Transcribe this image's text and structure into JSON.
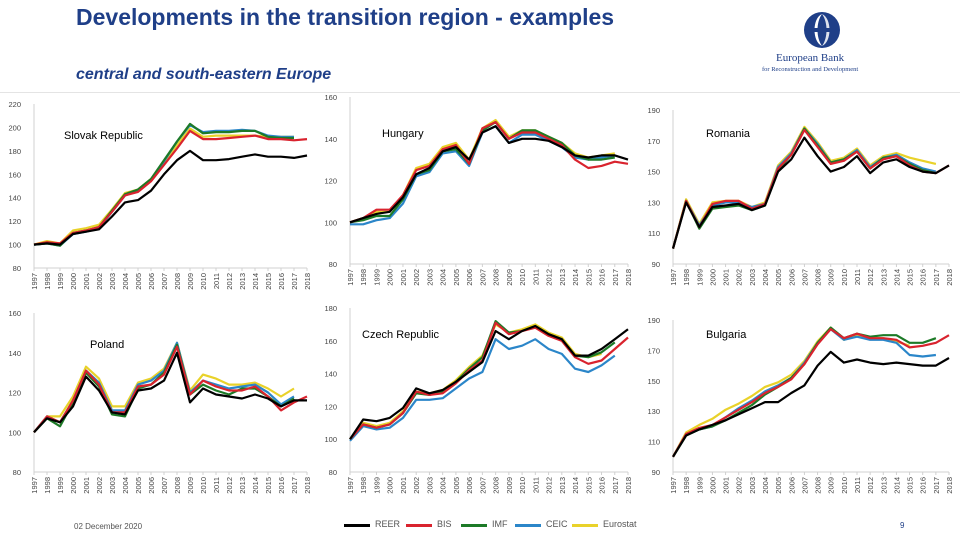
{
  "header": {
    "title": "Developments in the transition region - examples",
    "subtitle": "central and south-eastern Europe"
  },
  "logo": {
    "name": "European Bank",
    "tagline": "for Reconstruction and Development"
  },
  "footer": {
    "date": "02 December 2020",
    "page_number": "9"
  },
  "colors": {
    "REER": "#000000",
    "BIS": "#d9232e",
    "IMF": "#1d7a27",
    "CEIC": "#2b86c9",
    "Eurostat": "#e9d22a",
    "title": "#1f3f88"
  },
  "legend": [
    {
      "name": "REER",
      "color": "#000000"
    },
    {
      "name": "BIS",
      "color": "#d9232e"
    },
    {
      "name": "IMF",
      "color": "#1d7a27"
    },
    {
      "name": "CEIC",
      "color": "#2b86c9"
    },
    {
      "name": "Eurostat",
      "color": "#e9d22a"
    }
  ],
  "chart_data": [
    {
      "type": "line",
      "label": "Slovak Republic",
      "categories": [
        "1997",
        "1998",
        "1999",
        "2000",
        "2001",
        "2002",
        "2003",
        "2004",
        "2005",
        "2006",
        "2007",
        "2008",
        "2009",
        "2010",
        "2011",
        "2012",
        "2013",
        "2014",
        "2015",
        "2016",
        "2017",
        "2018"
      ],
      "ylim": [
        80,
        220
      ],
      "yticks": [
        80,
        100,
        120,
        140,
        160,
        180,
        200,
        220
      ],
      "series": [
        {
          "name": "REER",
          "values": [
            100,
            101,
            100,
            109,
            111,
            113,
            124,
            136,
            138,
            146,
            160,
            172,
            180,
            172,
            172,
            173,
            175,
            177,
            175,
            175,
            174,
            176
          ]
        },
        {
          "name": "BIS",
          "values": [
            100,
            102,
            101,
            110,
            112,
            115,
            128,
            142,
            145,
            154,
            168,
            182,
            197,
            190,
            190,
            191,
            192,
            193,
            190,
            190,
            189,
            190
          ]
        },
        {
          "name": "IMF",
          "values": [
            100,
            101,
            99,
            110,
            112,
            115,
            129,
            143,
            147,
            156,
            172,
            188,
            203,
            195,
            196,
            196,
            197,
            197,
            192,
            191,
            191,
            null
          ]
        },
        {
          "name": "CEIC",
          "values": [
            100,
            101,
            99,
            109,
            111,
            114,
            128,
            142,
            146,
            155,
            171,
            188,
            202,
            196,
            197,
            197,
            198,
            197,
            193,
            192,
            192,
            null
          ]
        },
        {
          "name": "Eurostat",
          "values": [
            100,
            103,
            101,
            112,
            114,
            117,
            130,
            144,
            147,
            156,
            170,
            185,
            199,
            192,
            193,
            193,
            193,
            193,
            192,
            192,
            192,
            null
          ]
        }
      ]
    },
    {
      "type": "line",
      "label": "Hungary",
      "categories": [
        "1997",
        "1998",
        "1999",
        "2000",
        "2001",
        "2002",
        "2003",
        "2004",
        "2005",
        "2006",
        "2007",
        "2008",
        "2009",
        "2010",
        "2011",
        "2012",
        "2013",
        "2014",
        "2015",
        "2016",
        "2017",
        "2018"
      ],
      "ylim": [
        80,
        160
      ],
      "yticks": [
        80,
        100,
        120,
        140,
        160
      ],
      "series": [
        {
          "name": "REER",
          "values": [
            100,
            102,
            104,
            105,
            112,
            123,
            126,
            134,
            136,
            130,
            143,
            146,
            138,
            140,
            140,
            139,
            136,
            132,
            131,
            132,
            132,
            130
          ]
        },
        {
          "name": "BIS",
          "values": [
            100,
            102,
            106,
            106,
            113,
            125,
            127,
            135,
            137,
            128,
            145,
            148,
            140,
            143,
            143,
            140,
            137,
            130,
            126,
            127,
            129,
            128
          ]
        },
        {
          "name": "IMF",
          "values": [
            100,
            101,
            103,
            103,
            111,
            123,
            125,
            134,
            135,
            128,
            144,
            148,
            140,
            144,
            144,
            141,
            138,
            132,
            130,
            130,
            131,
            null
          ]
        },
        {
          "name": "CEIC",
          "values": [
            99,
            99,
            101,
            102,
            109,
            122,
            124,
            133,
            134,
            127,
            143,
            146,
            138,
            142,
            142,
            139,
            136,
            131,
            130,
            131,
            132,
            null
          ]
        },
        {
          "name": "Eurostat",
          "values": [
            100,
            102,
            105,
            105,
            113,
            126,
            128,
            136,
            138,
            130,
            145,
            149,
            141,
            144,
            144,
            141,
            138,
            133,
            131,
            132,
            133,
            null
          ]
        }
      ]
    },
    {
      "type": "line",
      "label": "Romania",
      "categories": [
        "1997",
        "1998",
        "1999",
        "2000",
        "2001",
        "2002",
        "2003",
        "2004",
        "2005",
        "2006",
        "2007",
        "2008",
        "2009",
        "2010",
        "2011",
        "2012",
        "2013",
        "2014",
        "2015",
        "2016",
        "2017",
        "2018"
      ],
      "ylim": [
        90,
        190
      ],
      "yticks": [
        90,
        110,
        130,
        150,
        170,
        190
      ],
      "series": [
        {
          "name": "REER",
          "values": [
            100,
            130,
            114,
            127,
            128,
            129,
            125,
            128,
            150,
            158,
            172,
            160,
            150,
            153,
            160,
            149,
            156,
            158,
            153,
            150,
            149,
            154
          ]
        },
        {
          "name": "BIS",
          "values": [
            100,
            131,
            114,
            129,
            131,
            131,
            126,
            129,
            152,
            161,
            177,
            166,
            155,
            157,
            163,
            152,
            158,
            160,
            154,
            150,
            149,
            154
          ]
        },
        {
          "name": "IMF",
          "values": [
            100,
            131,
            113,
            126,
            127,
            128,
            125,
            128,
            151,
            161,
            178,
            167,
            156,
            158,
            163,
            152,
            159,
            160,
            155,
            151,
            149,
            null
          ]
        },
        {
          "name": "CEIC",
          "values": [
            100,
            131,
            115,
            128,
            130,
            130,
            127,
            129,
            153,
            162,
            178,
            168,
            156,
            158,
            164,
            153,
            159,
            161,
            156,
            152,
            150,
            null
          ]
        },
        {
          "name": "Eurostat",
          "values": [
            100,
            132,
            116,
            130,
            131,
            131,
            127,
            130,
            154,
            163,
            179,
            169,
            157,
            159,
            165,
            154,
            160,
            162,
            159,
            157,
            155,
            null
          ]
        }
      ]
    },
    {
      "type": "line",
      "label": "Poland",
      "categories": [
        "1997",
        "1998",
        "1999",
        "2000",
        "2001",
        "2002",
        "2003",
        "2004",
        "2005",
        "2006",
        "2007",
        "2008",
        "2009",
        "2010",
        "2011",
        "2012",
        "2013",
        "2014",
        "2015",
        "2016",
        "2017",
        "2018"
      ],
      "ylim": [
        80,
        160
      ],
      "yticks": [
        80,
        100,
        120,
        140,
        160
      ],
      "series": [
        {
          "name": "REER",
          "values": [
            100,
            107,
            105,
            113,
            128,
            121,
            110,
            109,
            121,
            122,
            126,
            140,
            115,
            122,
            119,
            118,
            117,
            119,
            117,
            113,
            116,
            116
          ]
        },
        {
          "name": "BIS",
          "values": [
            100,
            108,
            105,
            116,
            131,
            124,
            110,
            110,
            123,
            124,
            129,
            143,
            119,
            126,
            123,
            121,
            121,
            123,
            118,
            111,
            115,
            118
          ]
        },
        {
          "name": "IMF",
          "values": [
            100,
            107,
            103,
            115,
            130,
            123,
            109,
            108,
            122,
            124,
            130,
            144,
            119,
            124,
            121,
            119,
            122,
            122,
            118,
            113,
            117,
            null
          ]
        },
        {
          "name": "CEIC",
          "values": [
            100,
            108,
            105,
            116,
            131,
            125,
            111,
            111,
            124,
            126,
            131,
            145,
            120,
            126,
            124,
            122,
            123,
            124,
            120,
            114,
            118,
            null
          ]
        },
        {
          "name": "Eurostat",
          "values": [
            100,
            108,
            108,
            118,
            133,
            127,
            113,
            113,
            125,
            127,
            132,
            145,
            121,
            129,
            127,
            124,
            124,
            125,
            122,
            118,
            122,
            null
          ]
        }
      ]
    },
    {
      "type": "line",
      "label": "Czech Republic",
      "categories": [
        "1997",
        "1998",
        "1999",
        "2000",
        "2001",
        "2002",
        "2003",
        "2004",
        "2005",
        "2006",
        "2007",
        "2008",
        "2009",
        "2010",
        "2011",
        "2012",
        "2013",
        "2014",
        "2015",
        "2016",
        "2017",
        "2018"
      ],
      "ylim": [
        80,
        180
      ],
      "yticks": [
        80,
        100,
        120,
        140,
        160,
        180
      ],
      "series": [
        {
          "name": "REER",
          "values": [
            100,
            112,
            111,
            113,
            119,
            131,
            128,
            130,
            135,
            141,
            147,
            166,
            161,
            166,
            169,
            164,
            161,
            151,
            151,
            155,
            161,
            167
          ]
        },
        {
          "name": "BIS",
          "values": [
            100,
            109,
            107,
            109,
            116,
            129,
            127,
            128,
            134,
            142,
            148,
            171,
            164,
            166,
            168,
            163,
            160,
            150,
            146,
            148,
            155,
            162
          ]
        },
        {
          "name": "IMF",
          "values": [
            100,
            109,
            107,
            109,
            116,
            128,
            127,
            129,
            135,
            143,
            150,
            172,
            165,
            166,
            169,
            164,
            161,
            151,
            150,
            153,
            159,
            null
          ]
        },
        {
          "name": "CEIC",
          "values": [
            99,
            108,
            106,
            107,
            113,
            124,
            124,
            125,
            131,
            137,
            141,
            161,
            155,
            157,
            161,
            155,
            152,
            143,
            141,
            145,
            151,
            null
          ]
        },
        {
          "name": "Eurostat",
          "values": [
            100,
            110,
            108,
            110,
            117,
            129,
            128,
            130,
            136,
            144,
            151,
            170,
            165,
            167,
            170,
            165,
            162,
            152,
            150,
            152,
            null,
            null
          ]
        }
      ]
    },
    {
      "type": "line",
      "label": "Bulgaria",
      "categories": [
        "1997",
        "1998",
        "1999",
        "2000",
        "2001",
        "2002",
        "2003",
        "2004",
        "2005",
        "2006",
        "2007",
        "2008",
        "2009",
        "2010",
        "2011",
        "2012",
        "2013",
        "2014",
        "2015",
        "2016",
        "2017",
        "2018"
      ],
      "ylim": [
        90,
        190
      ],
      "yticks": [
        90,
        110,
        130,
        150,
        170,
        190
      ],
      "series": [
        {
          "name": "REER",
          "values": [
            100,
            114,
            118,
            121,
            124,
            128,
            132,
            136,
            136,
            142,
            147,
            160,
            169,
            162,
            164,
            162,
            161,
            162,
            161,
            160,
            160,
            165
          ]
        },
        {
          "name": "BIS",
          "values": [
            100,
            115,
            119,
            121,
            126,
            131,
            136,
            142,
            146,
            151,
            161,
            174,
            184,
            178,
            181,
            178,
            178,
            177,
            172,
            173,
            175,
            180
          ]
        },
        {
          "name": "IMF",
          "values": [
            100,
            114,
            118,
            120,
            124,
            129,
            134,
            141,
            146,
            152,
            161,
            175,
            185,
            178,
            181,
            179,
            180,
            180,
            175,
            175,
            178,
            null
          ]
        },
        {
          "name": "CEIC",
          "values": [
            100,
            115,
            118,
            120,
            126,
            132,
            137,
            143,
            147,
            152,
            162,
            175,
            184,
            177,
            179,
            177,
            177,
            175,
            167,
            166,
            167,
            null
          ]
        },
        {
          "name": "Eurostat",
          "values": [
            100,
            116,
            121,
            125,
            131,
            135,
            140,
            146,
            149,
            154,
            163,
            176,
            185,
            177,
            180,
            178,
            178,
            176,
            173,
            null,
            null,
            null
          ]
        }
      ]
    }
  ]
}
